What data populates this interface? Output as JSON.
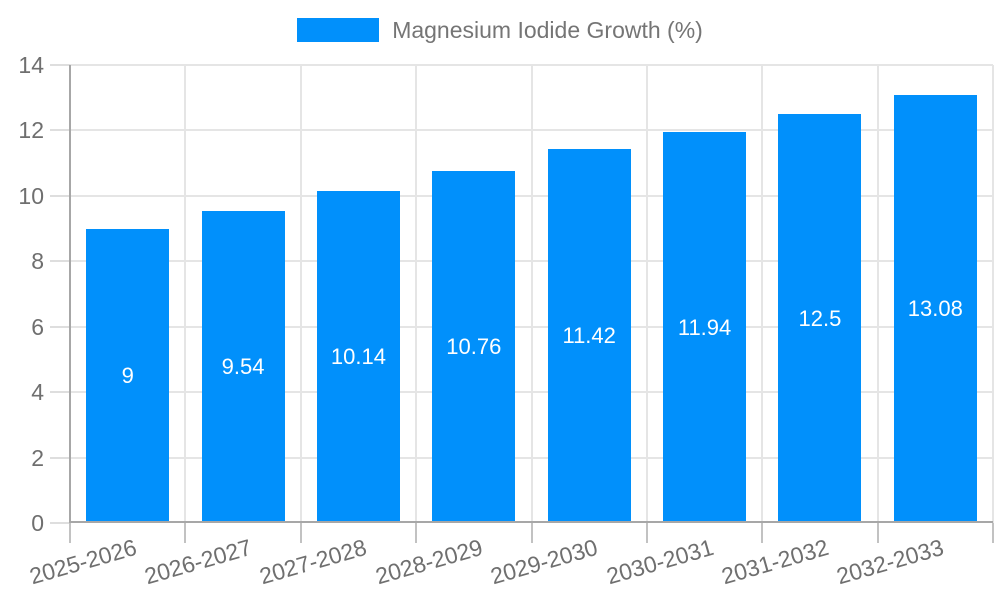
{
  "chart_data": {
    "type": "bar",
    "title": "",
    "categories": [
      "2025-2026",
      "2026-2027",
      "2027-2028",
      "2028-2029",
      "2029-2030",
      "2030-2031",
      "2031-2032",
      "2032-2033"
    ],
    "series": [
      {
        "name": "Magnesium Iodide Growth (%)",
        "values": [
          9,
          9.54,
          10.14,
          10.76,
          11.42,
          11.94,
          12.5,
          13.08
        ]
      }
    ],
    "data_labels": [
      "9",
      "9.54",
      "10.14",
      "10.76",
      "11.42",
      "11.94",
      "12.5",
      "13.08"
    ],
    "xlabel": "",
    "ylabel": "",
    "ylim": [
      0,
      14
    ],
    "ytick_step": 2,
    "ytick_labels": [
      "0",
      "2",
      "4",
      "6",
      "8",
      "10",
      "12",
      "14"
    ],
    "grid": true,
    "legend_position": "top"
  },
  "colors": {
    "bar": "#0190FB",
    "grid": "#E5E5E5",
    "axis": "#A7A7A7",
    "tick_text": "#6F6F6F",
    "legend_text": "#757575",
    "data_label_text": "#FFFFFF",
    "background": "#FFFFFF"
  }
}
